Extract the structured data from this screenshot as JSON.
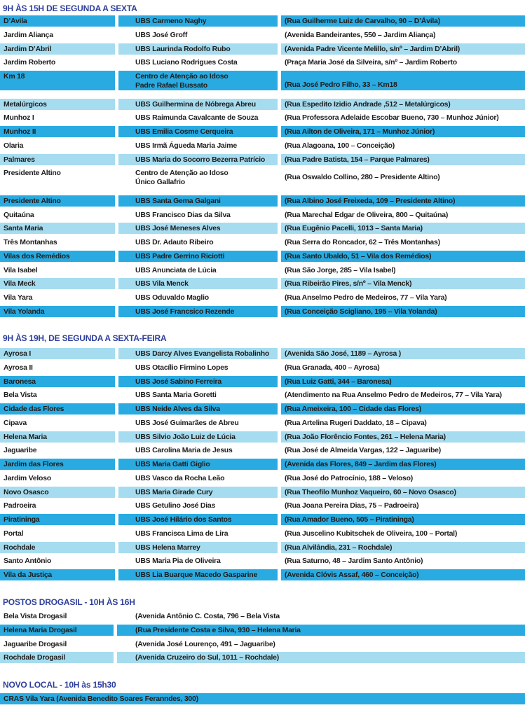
{
  "colors": {
    "dark_row": "#29abe2",
    "light_row": "#a6dcef",
    "heading": "#2e3f9b"
  },
  "sections": [
    {
      "title": "9H ÀS 15H DE SEGUNDA A SEXTA",
      "layout": "three",
      "rows": [
        {
          "style": "dark",
          "cells": [
            "D’Avila",
            "UBS Carmeno Naghy",
            "(Rua Guilherme Luiz de Carvalho, 90 – D’Ávila)"
          ]
        },
        {
          "style": "white",
          "cells": [
            "Jardim Aliança",
            "UBS José Groff",
            "(Avenida Bandeirantes, 550 – Jardim Aliança)"
          ]
        },
        {
          "style": "light",
          "cells": [
            "Jardim D’Abril",
            "UBS Laurinda Rodolfo Rubo",
            "(Avenida Padre Vicente Melillo, s/nº – Jardim D’Abril)"
          ]
        },
        {
          "style": "white",
          "cells": [
            "Jardim Roberto",
            "UBS Luciano Rodrigues Costa",
            "(Praça Maria José da Silveira, s/nº – Jardim Roberto"
          ]
        },
        {
          "style": "dark",
          "tall": true,
          "address_align": "bottom",
          "cells": [
            "Km 18",
            [
              "Centro de Atenção ao Idoso",
              "Padre Rafael Bussato"
            ],
            "(Rua José Pedro Filho, 33 – Km18"
          ]
        },
        {
          "style": "light",
          "cells": [
            "Metalúrgicos",
            "UBS Guilhermina de Nóbrega Abreu",
            "(Rua Espedito Izidio Andrade ,512 – Metalúrgicos)"
          ]
        },
        {
          "style": "white",
          "cells": [
            "Munhoz I",
            "UBS Raimunda Cavalcante de Souza",
            "(Rua Professora Adelaide Escobar Bueno, 730 – Munhoz Júnior)"
          ]
        },
        {
          "style": "dark",
          "cells": [
            "Munhoz II",
            "UBS Emilia Cosme Cerqueira",
            "(Rua Ailton de Oliveira, 171 – Munhoz Júnior)"
          ]
        },
        {
          "style": "white",
          "cells": [
            "Olaria",
            "UBS Irmã Águeda Maria Jaime",
            "(Rua Alagoana, 100 – Conceição)"
          ]
        },
        {
          "style": "light",
          "cells": [
            "Palmares",
            "UBS Maria do Socorro Bezerra Patrício",
            "(Rua Padre Batista, 154 – Parque Palmares)"
          ]
        },
        {
          "style": "white",
          "tall": true,
          "address_align": "center",
          "cells": [
            "Presidente Altino",
            [
              "Centro de Atenção ao Idoso",
              "Único Gallafrio"
            ],
            "(Rua Oswaldo Collino, 280 – Presidente Altino)"
          ]
        },
        {
          "style": "dark",
          "cells": [
            "Presidente Altino",
            "UBS Santa Gema Galgani",
            "(Rua Albino José Freixeda, 109 – Presidente Altino)"
          ]
        },
        {
          "style": "white",
          "cells": [
            "Quitaúna",
            "UBS Francisco Dias da Silva",
            "(Rua Marechal Edgar de Oliveira, 800 – Quitaúna)"
          ]
        },
        {
          "style": "light",
          "cells": [
            "Santa Maria",
            "UBS José Meneses Alves",
            "(Rua Eugênio Pacelli, 1013 – Santa Maria)"
          ]
        },
        {
          "style": "white",
          "cells": [
            "Três Montanhas",
            "UBS Dr. Adauto Ribeiro",
            "(Rua Serra do Roncador, 62 – Três Montanhas)"
          ]
        },
        {
          "style": "dark",
          "cells": [
            "Vilas dos Remédios",
            "UBS Padre Gerrino Riciotti",
            "(Rua Santo Ubaldo, 51 – Vila dos Remédios)"
          ]
        },
        {
          "style": "white",
          "cells": [
            "Vila Isabel",
            "UBS Anunciata de Lúcia",
            "(Rua São Jorge, 285 – Vila Isabel)"
          ]
        },
        {
          "style": "light",
          "cells": [
            "Vila Meck",
            "UBS Vila Menck",
            "(Rua Ribeirão Pires, s/nº – Vila Menck)"
          ]
        },
        {
          "style": "white",
          "cells": [
            "Vila Yara",
            "UBS Oduvaldo Maglio",
            "(Rua Anselmo Pedro de Medeiros, 77 – Vila Yara)"
          ]
        },
        {
          "style": "dark",
          "cells": [
            "Vila Yolanda",
            "UBS José Francsico Rezende",
            "(Rua Conceição Scigliano, 195 – Vila Yolanda)"
          ]
        }
      ]
    },
    {
      "title": "9H ÀS 19H, DE SEGUNDA A SEXTA-FEIRA",
      "layout": "three",
      "rows": [
        {
          "style": "light",
          "cells": [
            "Ayrosa I",
            "UBS Darcy Alves Evangelista Robalinho",
            "(Avenida São José, 1189 – Ayrosa )"
          ]
        },
        {
          "style": "white",
          "cells": [
            "Ayrosa II",
            "UBS Otacílio Firmino Lopes",
            "(Rua Granada, 400 – Ayrosa)"
          ]
        },
        {
          "style": "dark",
          "cells": [
            "Baronesa",
            "UBS José Sabino Ferreira",
            "(Rua Luiz Gatti, 344 – Baronesa)"
          ]
        },
        {
          "style": "white",
          "cells": [
            "Bela Vista",
            "UBS Santa Maria Goretti",
            "(Atendimento na Rua Anselmo Pedro de Medeiros, 77 – Vila Yara)"
          ]
        },
        {
          "style": "dark",
          "cells": [
            "Cidade das Flores",
            "UBS Neide Alves da Silva",
            "(Rua Ameixeira, 100 – Cidade das Flores)"
          ]
        },
        {
          "style": "white",
          "cells": [
            "Cipava",
            "UBS José Guimarães de Abreu",
            "(Rua Artelina Rugeri Daddato, 18 – Cipava)"
          ]
        },
        {
          "style": "light",
          "cells": [
            "Helena Maria",
            "UBS Silvio João Luiz de Lúcia",
            "(Rua João Florêncio Fontes, 261 – Helena Maria)"
          ]
        },
        {
          "style": "white",
          "cells": [
            "Jaguaribe",
            "UBS Carolina Maria de Jesus",
            "(Rua José de Almeida Vargas, 122 – Jaguaribe)"
          ]
        },
        {
          "style": "dark",
          "cells": [
            "Jardim das Flores",
            "UBS Maria Gatti Giglio",
            "(Avenida das Flores, 849 – Jardim das Flores)"
          ]
        },
        {
          "style": "white",
          "cells": [
            "Jardim Veloso",
            "UBS Vasco da Rocha Leão",
            "(Rua José do Patrocínio, 188 – Veloso)"
          ]
        },
        {
          "style": "light",
          "cells": [
            "Novo Osasco",
            "UBS Maria Girade Cury",
            "(Rua Theofilo Munhoz Vaqueiro, 60 – Novo Osasco)"
          ]
        },
        {
          "style": "white",
          "cells": [
            "Padroeira",
            "UBS Getulino José Dias",
            "(Rua Joana Pereira Dias, 75 – Padroeira)"
          ]
        },
        {
          "style": "dark",
          "cells": [
            "Piratininga",
            "UBS José Hilário dos Santos",
            "(Rua Amador Bueno, 505 – Piratininga)"
          ]
        },
        {
          "style": "white",
          "cells": [
            "Portal",
            "UBS Francisca Lima de Lira",
            "(Rua Juscelino Kubitschek de Oliveira, 100 – Portal)"
          ]
        },
        {
          "style": "light",
          "cells": [
            "Rochdale",
            "UBS Helena Marrey",
            "(Rua Alvilândia, 231 – Rochdale)"
          ]
        },
        {
          "style": "white",
          "cells": [
            "Santo Antônio",
            "UBS Maria Pia de Oliveira",
            "(Rua Saturno, 48 – Jardim Santo Antônio)"
          ]
        },
        {
          "style": "dark",
          "cells": [
            "Vila da Justiça",
            "UBS Lia Buarque Macedo Gasparine",
            "(Avenida Clóvis Assaf, 460 – Conceição)"
          ]
        }
      ]
    },
    {
      "title": "POSTOS DROGASIL  - 10H ÀS 16H",
      "layout": "two",
      "rows": [
        {
          "style": "white",
          "cells": [
            "Bela Vista Drogasil",
            "(Avenida Antônio C. Costa, 796 – Bela Vista"
          ]
        },
        {
          "style": "dark",
          "cells": [
            "Helena Maria    Drogasil",
            "(Rua Presidente Costa e Silva, 930 – Helena Maria"
          ]
        },
        {
          "style": "white",
          "cells": [
            "Jaguaribe Drogasil",
            "(Avenida José Lourenço, 491 – Jaguaribe)"
          ]
        },
        {
          "style": "light",
          "cells": [
            "Rochdale  Drogasil",
            "(Avenida Cruzeiro do Sul, 1011 – Rochdale)"
          ]
        }
      ]
    },
    {
      "title": "NOVO LOCAL - 10H às 15h30",
      "layout": "one",
      "rows": [
        {
          "style": "dark",
          "cells": [
            "CRAS Vila Yara (Avenida Benedito Soares Feranndes, 300)"
          ]
        }
      ]
    }
  ]
}
